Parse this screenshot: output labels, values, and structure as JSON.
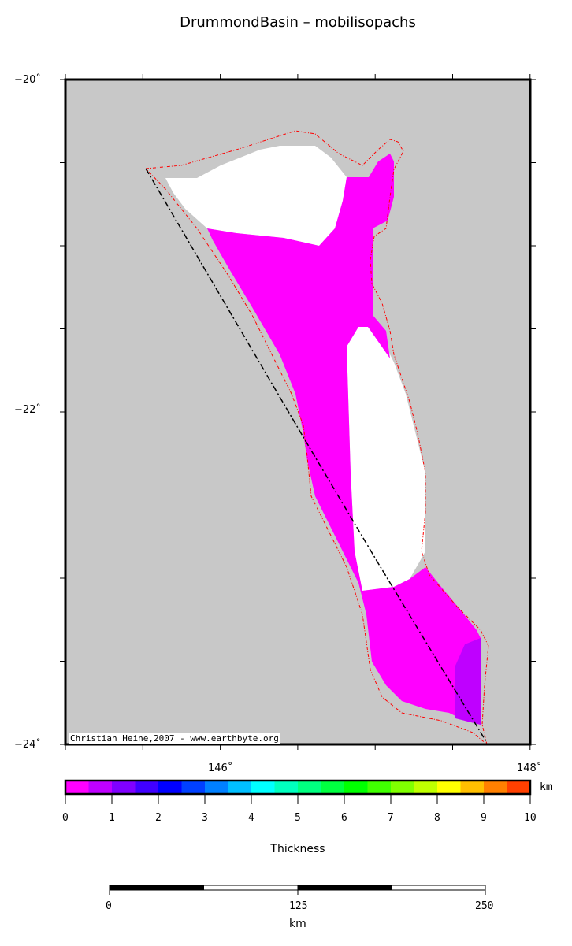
{
  "title": "DrummondBasin – mobilisopachs",
  "map": {
    "background_color": "#c8c8c8",
    "lat_labels": [
      "−20˚",
      "−22˚",
      "−24˚"
    ],
    "lon_labels": [
      "146˚",
      "148˚"
    ],
    "credit": "Christian Heine,2007 - www.earthbyte.org",
    "thickness_colors": {
      "0-0.5 km": "#ff00ff",
      "0.5-1 km": "#bf00ff",
      "no data": "#ffffff"
    },
    "outline_color": "#ff0000",
    "section_line_style": "dash-dot"
  },
  "colorbar": {
    "label": "Thickness",
    "unit": "km",
    "ticks": [
      "0",
      "1",
      "2",
      "3",
      "4",
      "5",
      "6",
      "7",
      "8",
      "9",
      "10"
    ],
    "colors": [
      "#ff00ff",
      "#bf00ff",
      "#8000ff",
      "#4000ff",
      "#0000ff",
      "#0040ff",
      "#0080ff",
      "#00bfff",
      "#00ffff",
      "#00ffbf",
      "#00ff80",
      "#00ff40",
      "#00ff00",
      "#40ff00",
      "#80ff00",
      "#bfff00",
      "#ffff00",
      "#ffbf00",
      "#ff8000",
      "#ff4000"
    ]
  },
  "scalebar": {
    "ticks": [
      "0",
      "125",
      "250"
    ],
    "unit": "km"
  }
}
